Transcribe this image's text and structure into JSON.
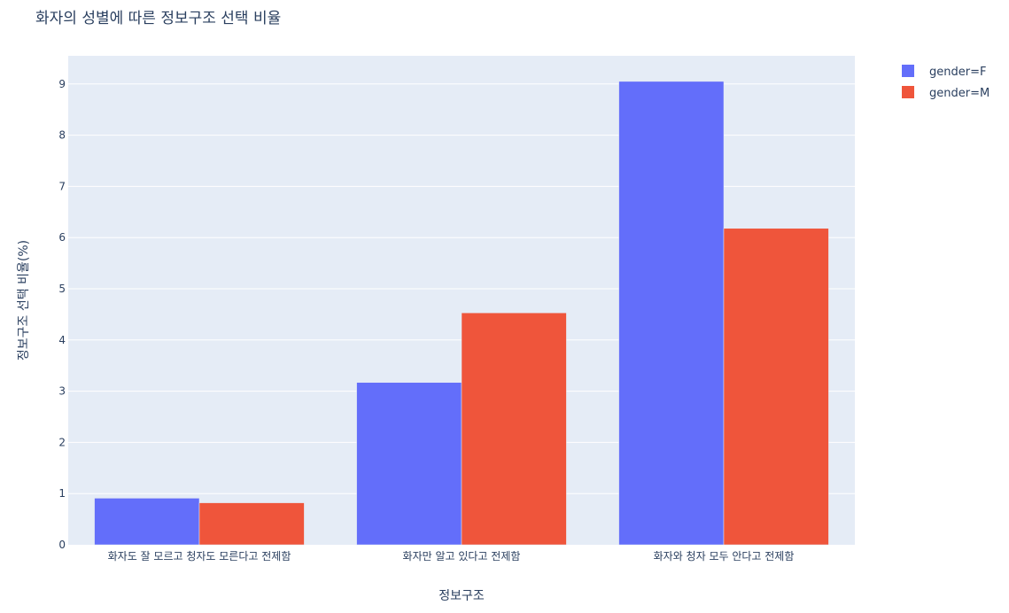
{
  "chart_data": {
    "type": "bar",
    "title": "화자의 성별에 따른 정보구조 선택 비율",
    "xlabel": "정보구조",
    "ylabel": "정보구조 선택 비율(%)",
    "categories": [
      "화자도 잘 모르고 청자도 모른다고 전제함",
      "화자만 알고 있다고 전제함",
      "화자와 청자 모두 안다고 전제함"
    ],
    "series": [
      {
        "name": "gender=F",
        "values": [
          0.91,
          3.17,
          9.05
        ],
        "color": "#636efa"
      },
      {
        "name": "gender=M",
        "values": [
          0.82,
          4.53,
          6.18
        ],
        "color": "#ef553b"
      }
    ],
    "ylim": [
      0,
      9.55
    ],
    "yticks": [
      0,
      1,
      2,
      3,
      4,
      5,
      6,
      7,
      8,
      9
    ],
    "grid": true,
    "legend_position": "top-right",
    "plot_background": "#e5ecf6"
  }
}
